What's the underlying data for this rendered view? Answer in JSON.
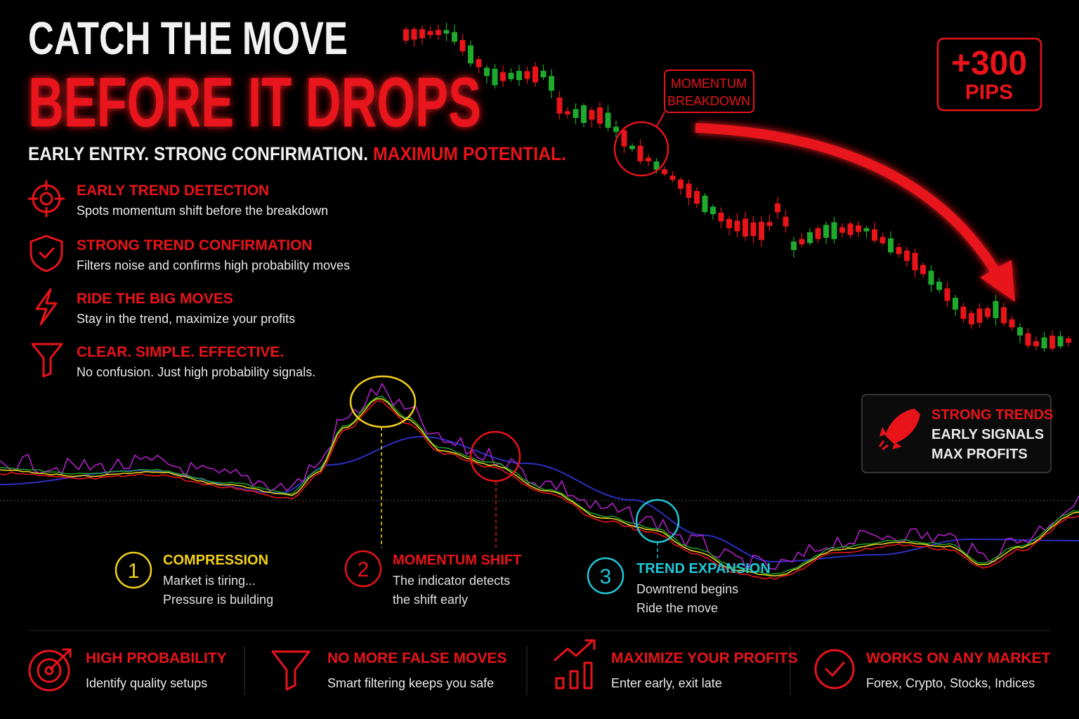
{
  "header": {
    "title_line1": "CATCH THE MOVE",
    "title_line2": "BEFORE IT DROPS",
    "tagline": "EARLY ENTRY. STRONG CONFIRMATION.",
    "tagline_highlight": "MAXIMUM POTENTIAL."
  },
  "features": [
    {
      "title": "EARLY TREND DETECTION",
      "text": "Spots momentum shift before the breakdown"
    },
    {
      "title": "STRONG TREND CONFIRMATION",
      "text": "Filters noise and confirms high probability moves"
    },
    {
      "title": "RIDE THE BIG MOVES",
      "text": "Stay in the trend, maximize your profits"
    },
    {
      "title": "CLEAR. SIMPLE. EFFECTIVE.",
      "text": "No confusion. Just high probability signals."
    }
  ],
  "annotation": {
    "line1": "MOMENTUM",
    "line2": "BREAKDOWN"
  },
  "badge": {
    "value": "+300",
    "unit": "PIPS"
  },
  "promo": [
    "STRONG TRENDS",
    "EARLY SIGNALS",
    "MAX PROFITS"
  ],
  "stages": [
    {
      "number": "1",
      "title": "COMPRESSION",
      "lines": [
        "Market is tiring...",
        "Pressure is building"
      ]
    },
    {
      "number": "2",
      "title": "MOMENTUM SHIFT",
      "lines": [
        "The indicator detects",
        "the shift early"
      ]
    },
    {
      "number": "3",
      "title": "TREND EXPANSION",
      "lines": [
        "Downtrend begins",
        "Ride the move"
      ]
    }
  ],
  "benefits": [
    {
      "title": "HIGH PROBABILITY",
      "text": "Identify quality setups"
    },
    {
      "title": "NO MORE FALSE MOVES",
      "text": "Smart filtering keeps you safe"
    },
    {
      "title": "MAXIMIZE YOUR PROFITS",
      "text": "Enter early, exit late"
    },
    {
      "title": "WORKS ON ANY MARKET",
      "text": "Forex, Crypto, Stocks, Indices"
    }
  ]
}
